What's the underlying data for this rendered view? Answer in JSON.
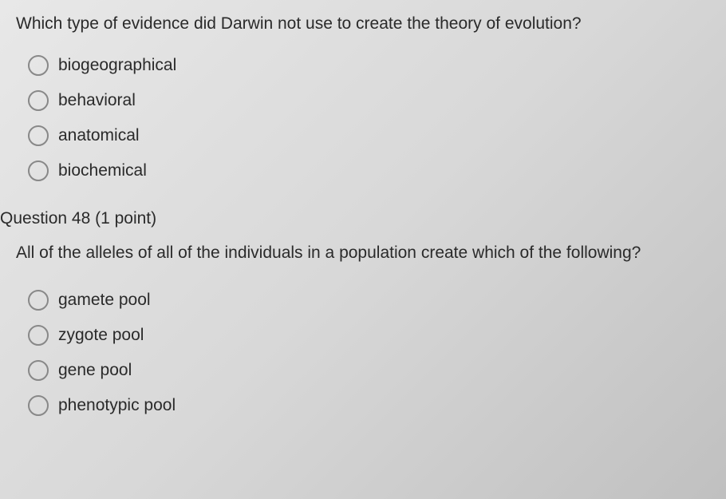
{
  "question47": {
    "text": "Which type of evidence did Darwin not use to create the theory of evolution?",
    "options": [
      "biogeographical",
      "behavioral",
      "anatomical",
      "biochemical"
    ]
  },
  "question48": {
    "header": "Question 48 (1 point)",
    "text": "All of the alleles of all of the individuals in a population create which of the following?",
    "options": [
      "gamete pool",
      "zygote pool",
      "gene pool",
      "phenotypic pool"
    ]
  },
  "style": {
    "background_gradient_start": "#e8e8e8",
    "background_gradient_end": "#c0c0c0",
    "text_color": "#2a2a2a",
    "radio_border_color": "#888",
    "font_size_main": 21,
    "radio_size": 26,
    "font_family": "Arial"
  }
}
